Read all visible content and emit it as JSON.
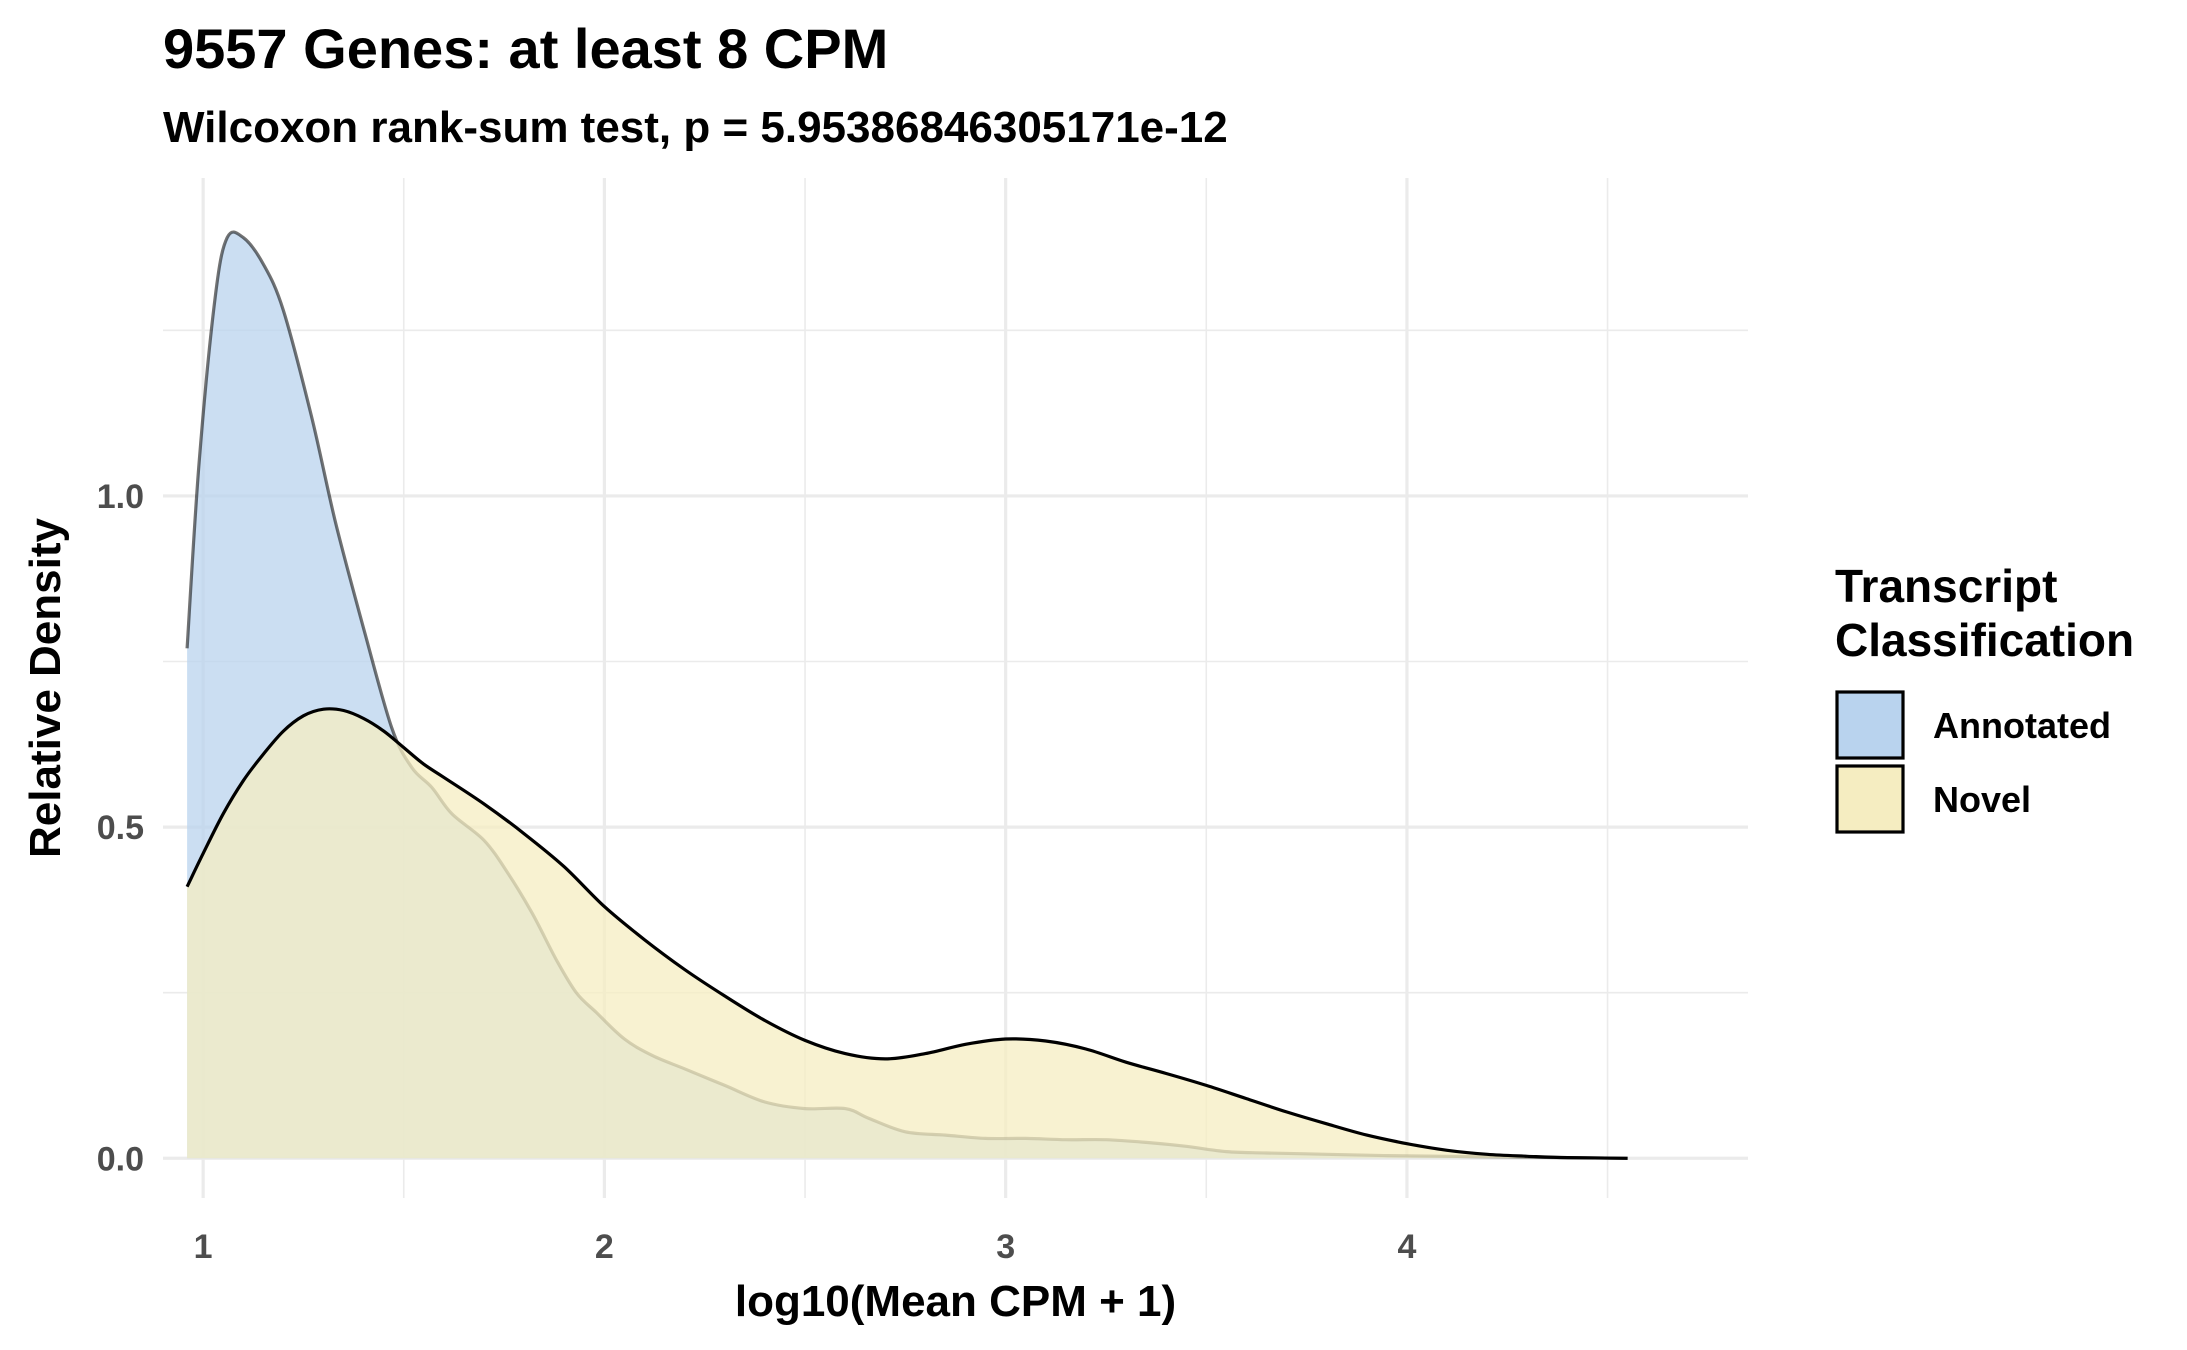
{
  "chart_data": {
    "type": "area",
    "title": "9557 Genes: at least 8 CPM",
    "subtitle": "Wilcoxon rank-sum test, p = 5.95386846305171e-12",
    "xlabel": "log10(Mean CPM + 1)",
    "ylabel": "Relative Density",
    "xlim": [
      0.9,
      4.85
    ],
    "ylim": [
      -0.06,
      1.48
    ],
    "x_ticks": [
      1,
      2,
      3,
      4
    ],
    "x_tick_labels": [
      "1",
      "2",
      "3",
      "4"
    ],
    "y_ticks": [
      0.0,
      0.5,
      1.0
    ],
    "y_tick_labels": [
      "0.0",
      "0.5",
      "1.0"
    ],
    "grid": true,
    "legend": {
      "title_lines": [
        "Transcript",
        "Classification"
      ],
      "placement": "right"
    },
    "series": [
      {
        "name": "Annotated",
        "color": "#b9d3ee",
        "x": [
          0.96,
          0.99,
          1.03,
          1.06,
          1.1,
          1.15,
          1.2,
          1.27,
          1.33,
          1.4,
          1.47,
          1.52,
          1.57,
          1.62,
          1.7,
          1.76,
          1.82,
          1.88,
          1.93,
          1.98,
          2.05,
          2.12,
          2.2,
          2.3,
          2.4,
          2.5,
          2.6,
          2.66,
          2.75,
          2.85,
          2.95,
          3.05,
          3.15,
          3.25,
          3.35,
          3.45,
          3.55,
          3.65,
          3.8,
          3.95,
          4.1,
          4.25,
          4.4,
          4.55
        ],
        "y": [
          0.77,
          1.05,
          1.3,
          1.39,
          1.39,
          1.35,
          1.28,
          1.12,
          0.96,
          0.8,
          0.65,
          0.59,
          0.56,
          0.52,
          0.48,
          0.43,
          0.37,
          0.3,
          0.25,
          0.22,
          0.18,
          0.155,
          0.135,
          0.11,
          0.085,
          0.075,
          0.075,
          0.06,
          0.04,
          0.035,
          0.03,
          0.03,
          0.028,
          0.028,
          0.024,
          0.018,
          0.01,
          0.008,
          0.006,
          0.004,
          0.003,
          0.002,
          0.001,
          0.0
        ]
      },
      {
        "name": "Novel",
        "color": "#f5edc1",
        "x": [
          0.96,
          1.0,
          1.05,
          1.1,
          1.15,
          1.2,
          1.25,
          1.3,
          1.35,
          1.4,
          1.45,
          1.5,
          1.55,
          1.6,
          1.7,
          1.8,
          1.9,
          2.0,
          2.1,
          2.2,
          2.3,
          2.4,
          2.5,
          2.6,
          2.7,
          2.8,
          2.9,
          3.0,
          3.1,
          3.2,
          3.3,
          3.4,
          3.5,
          3.6,
          3.7,
          3.8,
          3.9,
          4.0,
          4.1,
          4.2,
          4.3,
          4.4,
          4.55
        ],
        "y": [
          0.41,
          0.46,
          0.52,
          0.57,
          0.61,
          0.645,
          0.668,
          0.678,
          0.676,
          0.664,
          0.645,
          0.62,
          0.595,
          0.575,
          0.535,
          0.49,
          0.44,
          0.38,
          0.33,
          0.285,
          0.245,
          0.208,
          0.178,
          0.158,
          0.15,
          0.158,
          0.172,
          0.18,
          0.177,
          0.165,
          0.145,
          0.128,
          0.11,
          0.09,
          0.07,
          0.052,
          0.035,
          0.022,
          0.012,
          0.006,
          0.003,
          0.001,
          0.0
        ]
      }
    ]
  }
}
